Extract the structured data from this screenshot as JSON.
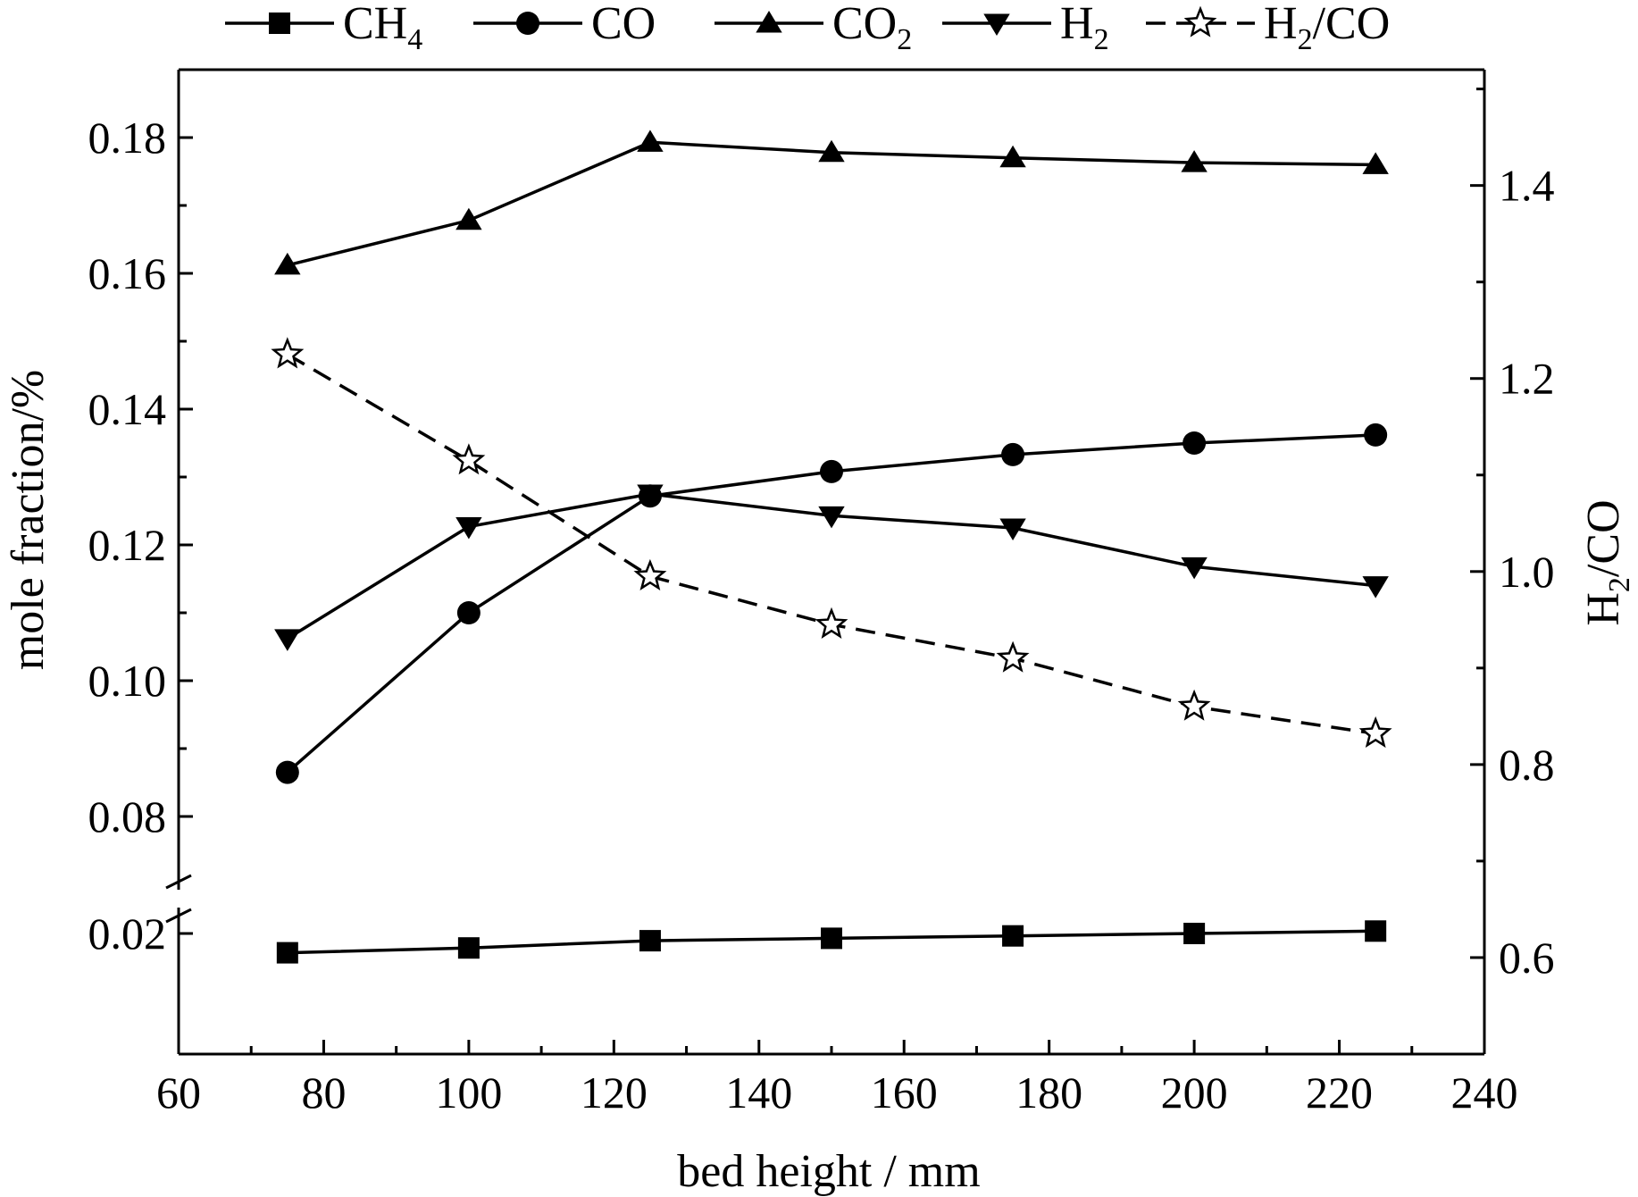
{
  "chart_data": {
    "type": "line",
    "title": "",
    "xlabel": "bed height / mm",
    "ylabel": "mole fraction/%",
    "y2label": "H2/CO",
    "y2label_main": "H",
    "y2label_sub": "2",
    "y2label_tail": "/CO",
    "xlim": [
      60,
      240
    ],
    "x_ticks": [
      "60",
      "80",
      "100",
      "120",
      "140",
      "160",
      "180",
      "200",
      "220",
      "240"
    ],
    "ylim_upper": [
      0.07,
      0.19
    ],
    "ylim_lower": [
      0.015,
      0.021
    ],
    "y_ticks_upper": [
      "0.08",
      "0.10",
      "0.12",
      "0.14",
      "0.16",
      "0.18"
    ],
    "y_ticks_lower": [
      "0.02"
    ],
    "y2lim": [
      0.5,
      1.52
    ],
    "y2_ticks": [
      "0.6",
      "0.8",
      "1.0",
      "1.2",
      "1.4"
    ],
    "x": [
      75,
      100,
      125,
      150,
      175,
      200,
      225
    ],
    "legend_position": "top",
    "series": [
      {
        "name": "CH4",
        "label_main": "CH",
        "label_sub": "4",
        "label_tail": "",
        "marker": "square",
        "dash": "solid",
        "axis": "lower",
        "color": "#000000",
        "values": [
          0.0192,
          0.0194,
          0.0197,
          0.0198,
          0.0199,
          0.02,
          0.0201
        ]
      },
      {
        "name": "CO",
        "label_main": "CO",
        "label_sub": "",
        "label_tail": "",
        "marker": "circle",
        "dash": "solid",
        "axis": "upper",
        "color": "#000000",
        "values": [
          0.0865,
          0.11,
          0.1272,
          0.1308,
          0.1333,
          0.135,
          0.1362
        ]
      },
      {
        "name": "CO2",
        "label_main": "CO",
        "label_sub": "2",
        "label_tail": "",
        "marker": "triangle-up",
        "dash": "solid",
        "axis": "upper",
        "color": "#000000",
        "values": [
          0.1612,
          0.1678,
          0.1793,
          0.1778,
          0.177,
          0.1763,
          0.176
        ]
      },
      {
        "name": "H2",
        "label_main": "H",
        "label_sub": "2",
        "label_tail": "",
        "marker": "triangle-down",
        "dash": "solid",
        "axis": "upper",
        "color": "#000000",
        "values": [
          0.1062,
          0.1227,
          0.1275,
          0.1243,
          0.1225,
          0.1168,
          0.114
        ]
      },
      {
        "name": "H2/CO",
        "label_main": "H",
        "label_sub": "2",
        "label_tail": "/CO",
        "marker": "star",
        "dash": "dashed",
        "axis": "right",
        "color": "#000000",
        "values": [
          1.225,
          1.115,
          0.995,
          0.945,
          0.91,
          0.86,
          0.832
        ]
      }
    ]
  }
}
